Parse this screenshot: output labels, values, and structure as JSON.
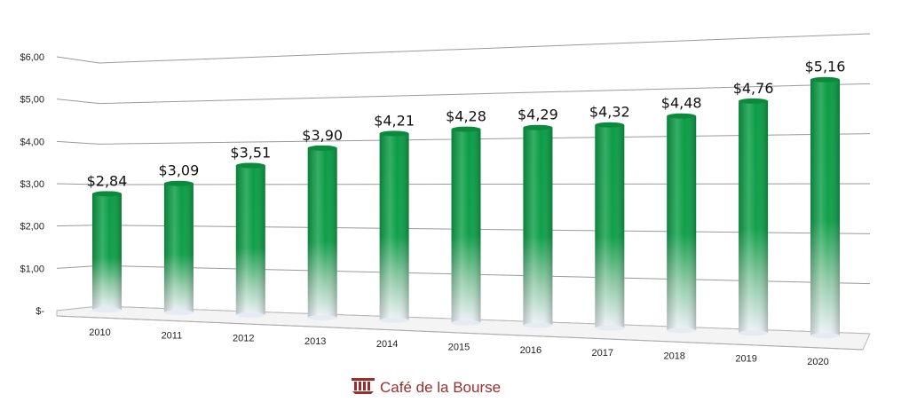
{
  "chart_data": {
    "type": "bar",
    "title": "",
    "xlabel": "",
    "ylabel": "",
    "categories": [
      "2010",
      "2011",
      "2012",
      "2013",
      "2014",
      "2015",
      "2016",
      "2017",
      "2018",
      "2019",
      "2020"
    ],
    "values": [
      2.84,
      3.09,
      3.51,
      3.9,
      4.21,
      4.28,
      4.29,
      4.32,
      4.48,
      4.76,
      5.16
    ],
    "data_labels": [
      "$2,84",
      "$3,09",
      "$3,51",
      "$3,90",
      "$4,21",
      "$4,28",
      "$4,29",
      "$4,32",
      "$4,48",
      "$4,76",
      "$5,16"
    ],
    "ylim": [
      0,
      6
    ],
    "y_ticks": [
      0,
      1,
      2,
      3,
      4,
      5,
      6
    ],
    "y_tick_labels": [
      "$-",
      "$1,00",
      "$2,00",
      "$3,00",
      "$4,00",
      "$5,00",
      "$6,00"
    ],
    "grid": true,
    "style": "3d-cylinder",
    "colors": {
      "bar_top": "#0a9c44",
      "bar_bottom": "#eef2f8",
      "grid": "#9a9a9a"
    }
  },
  "brand": {
    "name": "Café de la Bourse",
    "icon": "column-logo-icon",
    "color": "#9b2d2a"
  }
}
